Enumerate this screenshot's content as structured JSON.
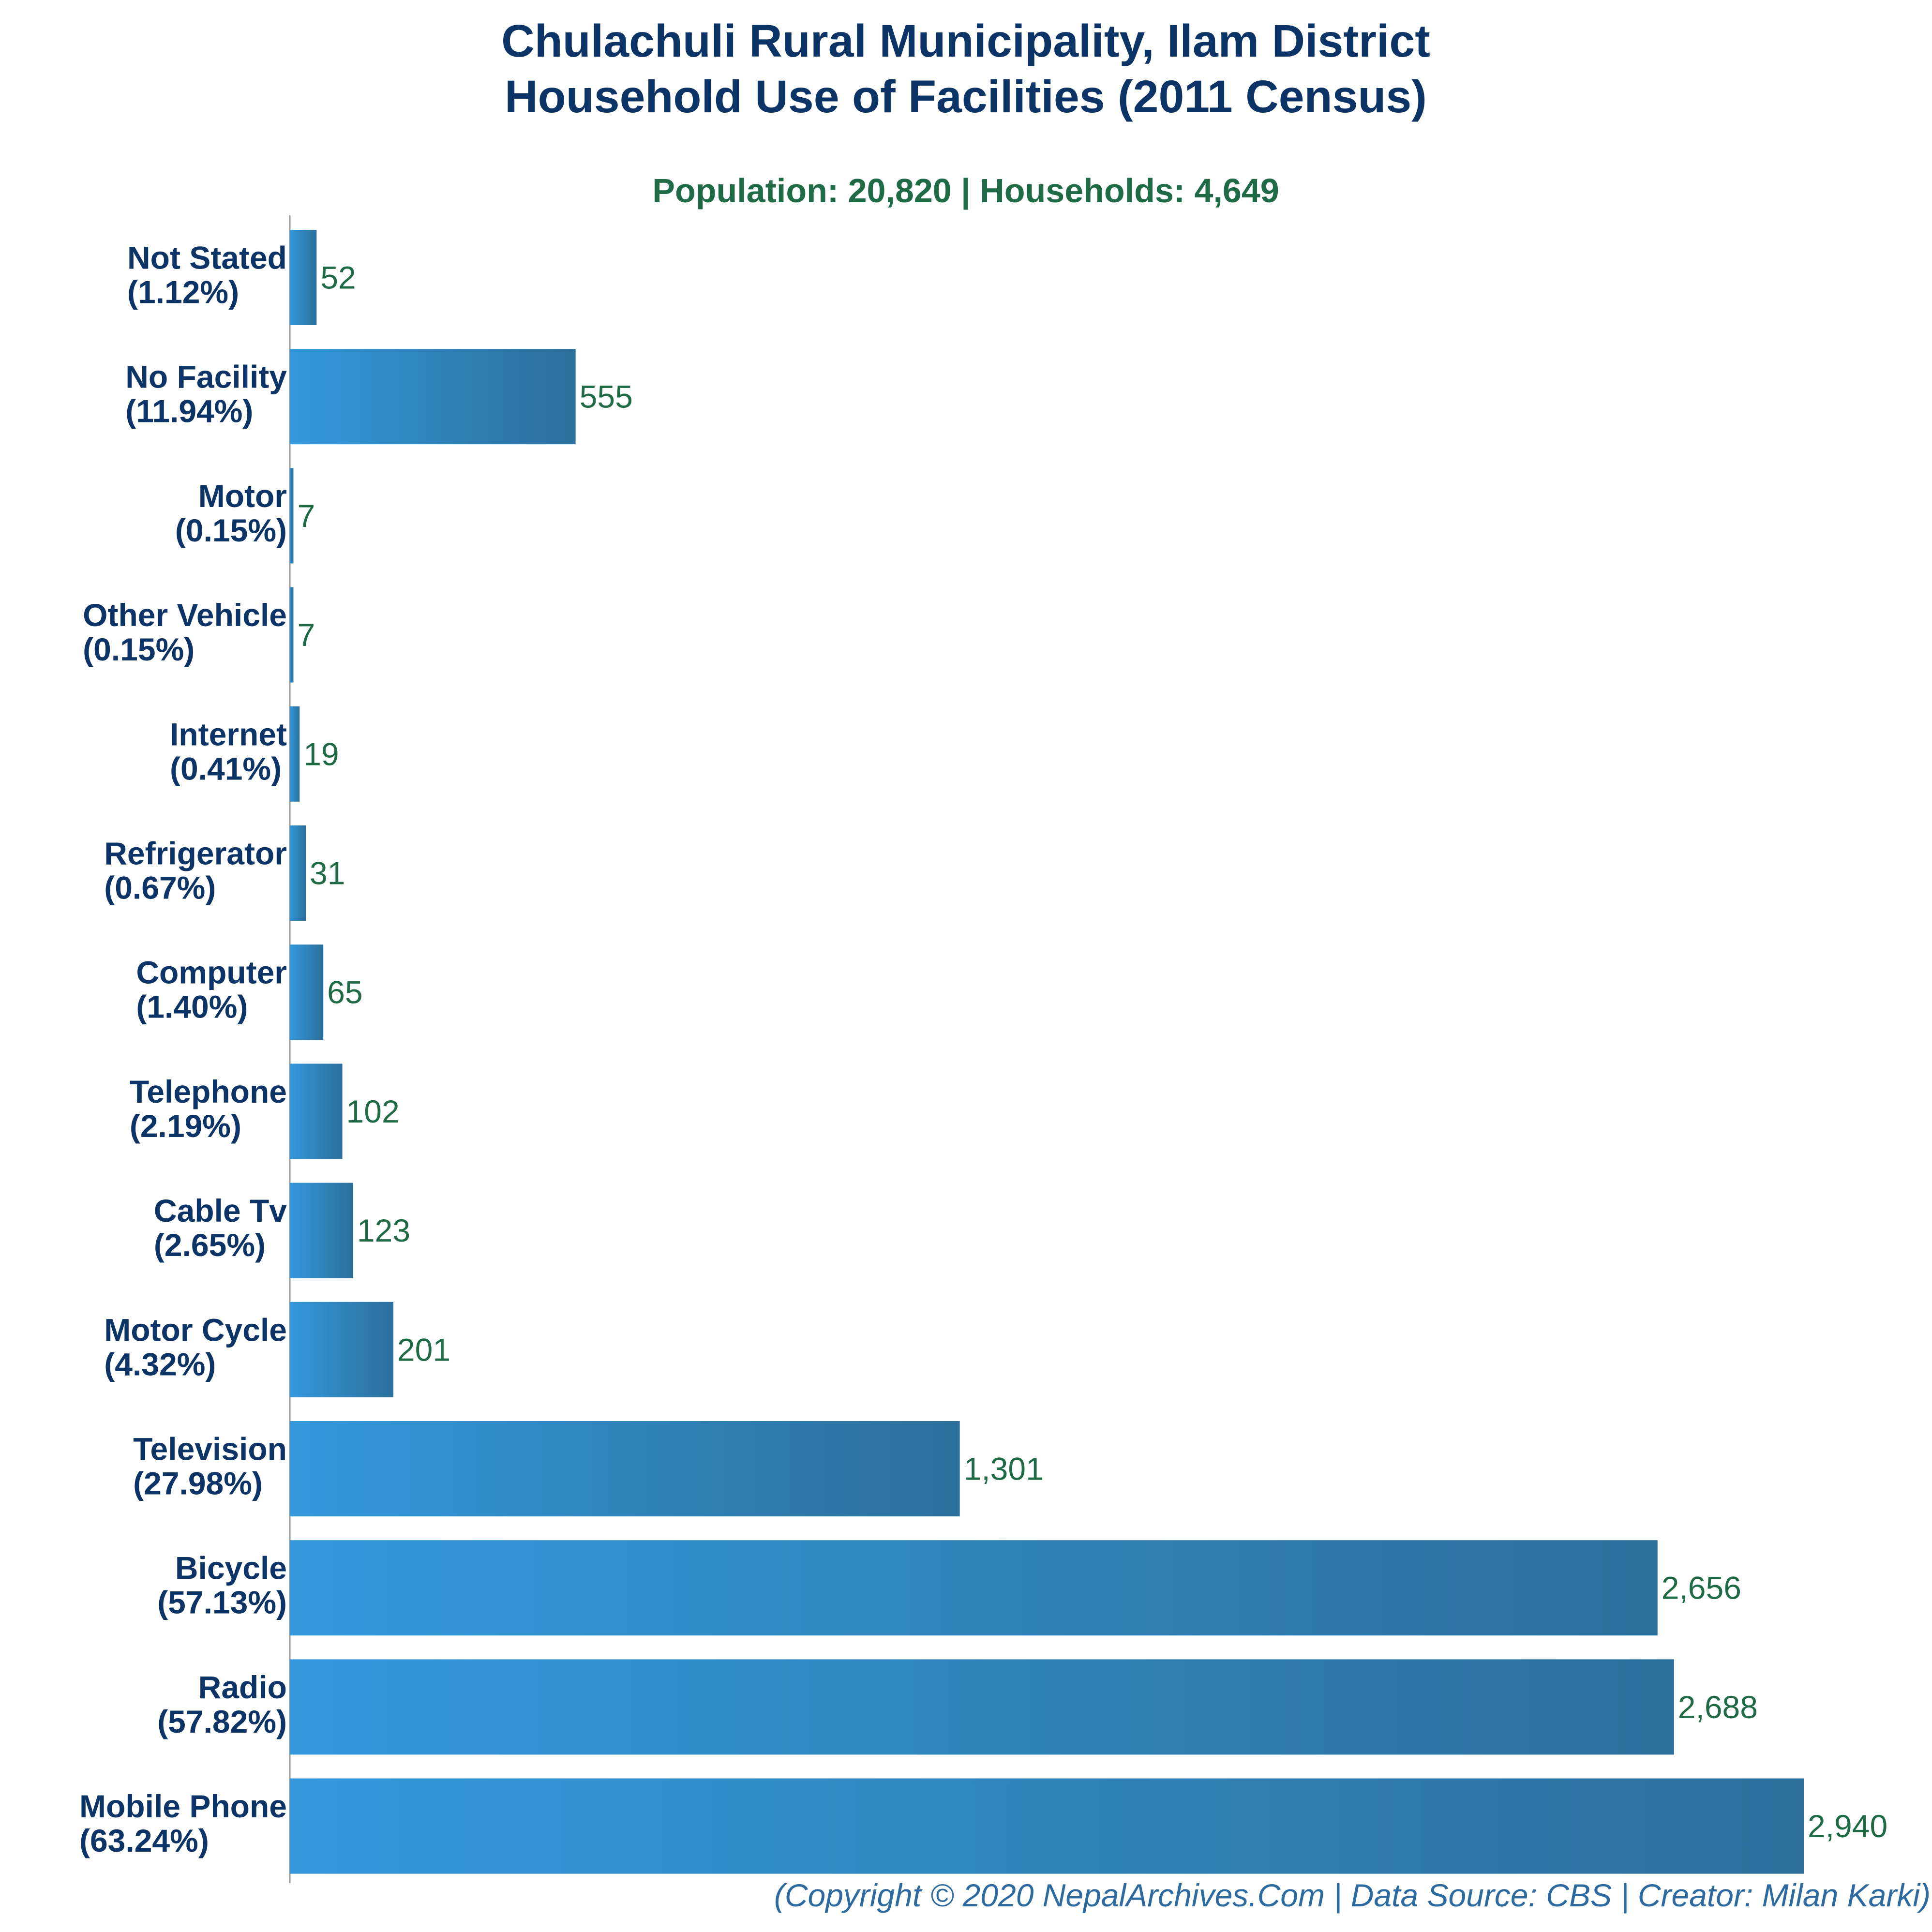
{
  "chart_data": {
    "type": "bar",
    "orientation": "horizontal",
    "title": "Chulachuli Rural Municipality, Ilam District",
    "subtitle_line2": "Household Use of Facilities (2011 Census)",
    "summary": "Population: 20,820 | Households: 4,649",
    "footer": "(Copyright © 2020 NepalArchives.Com | Data Source: CBS | Creator: Milan Karki)",
    "categories": [
      "Not Stated",
      "No Facility",
      "Motor",
      "Other Vehicle",
      "Internet",
      "Refrigerator",
      "Computer",
      "Telephone",
      "Cable Tv",
      "Motor Cycle",
      "Television",
      "Bicycle",
      "Radio",
      "Mobile Phone"
    ],
    "percent_labels": [
      "(1.12%)",
      "(11.94%)",
      "(0.15%)",
      "(0.15%)",
      "(0.41%)",
      "(0.67%)",
      "(1.40%)",
      "(2.19%)",
      "(2.65%)",
      "(4.32%)",
      "(27.98%)",
      "(57.13%)",
      "(57.82%)",
      "(63.24%)"
    ],
    "values": [
      52,
      555,
      7,
      7,
      19,
      31,
      65,
      102,
      123,
      201,
      1301,
      2656,
      2688,
      2940
    ],
    "value_labels": [
      "52",
      "555",
      "7",
      "7",
      "19",
      "31",
      "65",
      "102",
      "123",
      "201",
      "1,301",
      "2,656",
      "2,688",
      "2,940"
    ],
    "xlim": [
      0,
      2940
    ],
    "grid": false,
    "legend": "none",
    "colors": {
      "title": "#0d3466",
      "summary": "#1e6b45",
      "category_label": "#0d3466",
      "value_label": "#1e6b45",
      "footer": "#2d6aa0",
      "bar_start": "#3498db",
      "bar_end": "#2b6f9c",
      "axis": "#999999"
    }
  }
}
